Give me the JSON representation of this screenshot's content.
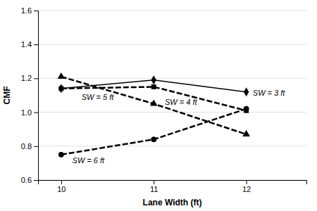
{
  "chart_data": {
    "type": "line",
    "xlabel": "Lane Width (ft)",
    "ylabel": "CMF",
    "x": [
      10,
      11,
      12
    ],
    "series": [
      {
        "values": [
          1.14,
          1.19,
          1.12
        ],
        "color": "#000000",
        "marker": "diamond",
        "line_style": "solid"
      },
      {
        "values": [
          1.21,
          1.05,
          0.87
        ],
        "color": "#000000",
        "marker": "triangle",
        "line_style": "dashed"
      },
      {
        "values": [
          1.14,
          1.15,
          1.01
        ],
        "color": "#000000",
        "marker": "square",
        "line_style": "dashed"
      },
      {
        "values": [
          0.75,
          0.84,
          1.02
        ],
        "color": "#000000",
        "marker": "circle",
        "line_style": "dashed"
      }
    ],
    "annotations": [
      {
        "text": "SW = 3 ft",
        "x": 12.07,
        "y": 1.115
      },
      {
        "text": "SW = 4 ft",
        "x": 11.12,
        "y": 1.06
      },
      {
        "text": "SW = 5 ft",
        "x": 10.22,
        "y": 1.09
      },
      {
        "text": "SW = 6 ft",
        "x": 10.12,
        "y": 0.715
      }
    ],
    "xlim": [
      9.75,
      12.65
    ],
    "ylim": [
      0.6,
      1.6
    ],
    "xticks": [
      10,
      11,
      12
    ],
    "yticks": [
      0.6,
      0.8,
      {
        "value": 1.0,
        "label": "1.0"
      },
      1.2,
      1.4,
      1.6
    ],
    "grid": true
  }
}
